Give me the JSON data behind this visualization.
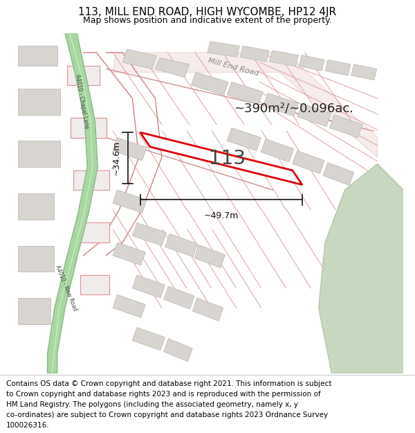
{
  "title": "113, MILL END ROAD, HIGH WYCOMBE, HP12 4JR",
  "subtitle": "Map shows position and indicative extent of the property.",
  "footer_lines": [
    "Contains OS data © Crown copyright and database right 2021. This information is subject",
    "to Crown copyright and database rights 2023 and is reproduced with the permission of",
    "HM Land Registry. The polygons (including the associated geometry, namely x, y",
    "co-ordinates) are subject to Crown copyright and database rights 2023 Ordnance Survey",
    "100026316."
  ],
  "map_bg": "#f7f5f2",
  "road_green_fill": "#a8d8a0",
  "road_green_edge": "#88b888",
  "building_fill": "#d8d5d0",
  "building_edge": "#c0bcb8",
  "road_line_color": "#e8a0a0",
  "property_outline": "#dd0000",
  "property_fill": "#ffffff",
  "green_area_fill": "#c8d8c0",
  "green_area_edge": "#a8c0a0",
  "plot_label": "113",
  "area_label": "~390m²/~0.096ac.",
  "dim_h": "~34.6m",
  "dim_w": "~49.7m",
  "dim_color": "#111111",
  "label_color": "#222222",
  "road_label_color": "#555555",
  "mill_end_road_label": "Mill End Road",
  "chapel_lane_label": "A4010 - Chapel Lane",
  "new_road_label": "A4010 - New Road",
  "title_fontsize": 11,
  "subtitle_fontsize": 9,
  "footer_fontsize": 7.5,
  "area_fontsize": 13,
  "plot_fontsize": 20,
  "dim_fontsize": 9
}
